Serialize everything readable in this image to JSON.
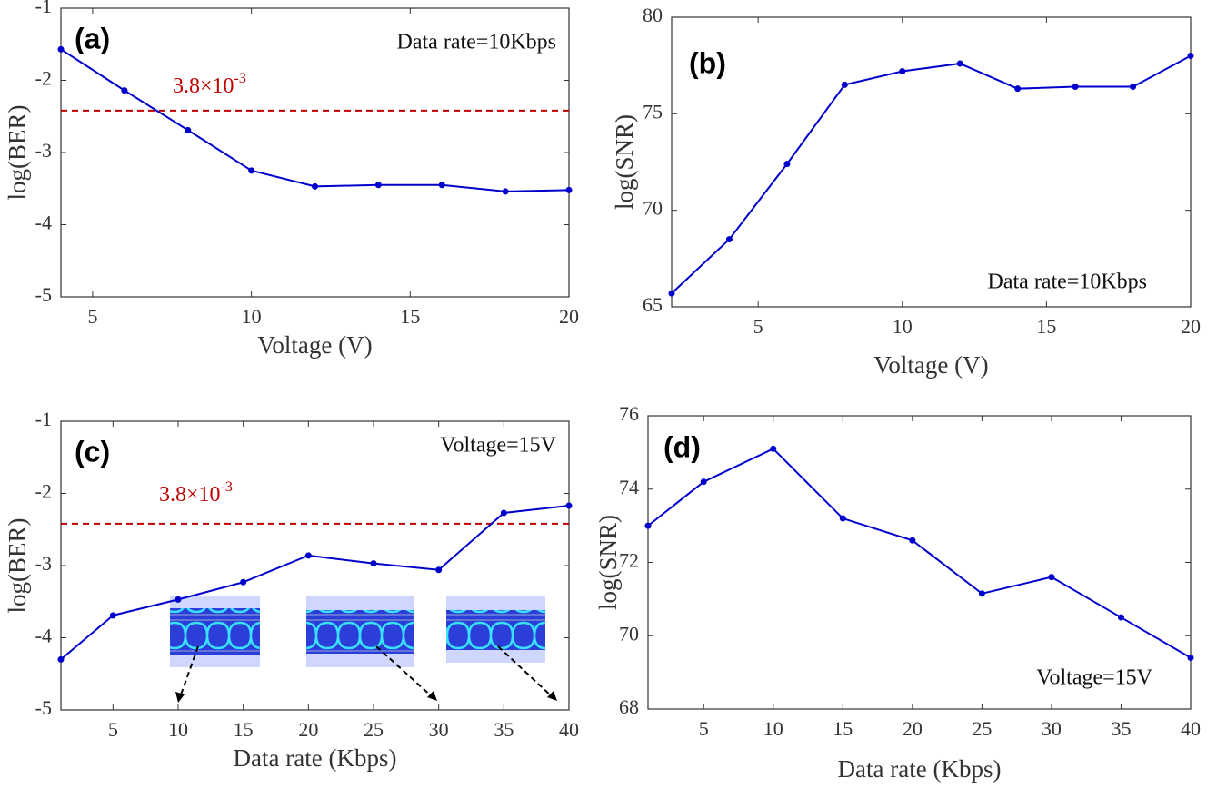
{
  "chart_data": [
    {
      "type": "line",
      "panel_label": "(a)",
      "annotation": "Data rate=10Kbps",
      "xlabel": "Voltage (V)",
      "ylabel": "log(BER)",
      "x": [
        4,
        6,
        8,
        10,
        12,
        14,
        16,
        18,
        20
      ],
      "series": [
        {
          "color": "#0000cc",
          "values": [
            -1.57,
            -2.14,
            -2.69,
            -3.25,
            -3.47,
            -3.45,
            -3.45,
            -3.54,
            -3.52
          ]
        }
      ],
      "threshold": {
        "value": -2.42,
        "color": "#c00000",
        "label_base": "3.8×10",
        "label_exponent": "-3"
      },
      "xlim": [
        4,
        20
      ],
      "xticks": [
        5,
        10,
        15,
        20
      ],
      "ylim": [
        -5,
        -1
      ],
      "yticks": [
        -5,
        -4,
        -3,
        -2,
        -1
      ]
    },
    {
      "type": "line",
      "panel_label": "(b)",
      "annotation": "Data rate=10Kbps",
      "xlabel": "Voltage (V)",
      "ylabel": "log(SNR)",
      "x": [
        2,
        4,
        6,
        8,
        10,
        12,
        14,
        16,
        18,
        20
      ],
      "series": [
        {
          "color": "#0000cc",
          "values": [
            65.7,
            68.5,
            72.4,
            76.5,
            77.2,
            77.6,
            76.3,
            76.4,
            76.4,
            78.0
          ]
        }
      ],
      "xlim": [
        2,
        20
      ],
      "xticks": [
        5,
        10,
        15,
        20
      ],
      "ylim": [
        65,
        80
      ],
      "yticks": [
        65,
        70,
        75,
        80
      ]
    },
    {
      "type": "line",
      "panel_label": "(c)",
      "annotation": "Voltage=15V",
      "xlabel": "Data rate (Kbps)",
      "ylabel": "log(BER)",
      "x": [
        1,
        5,
        10,
        15,
        20,
        25,
        30,
        35,
        40
      ],
      "series": [
        {
          "color": "#0000cc",
          "values": [
            -4.3,
            -3.69,
            -3.47,
            -3.23,
            -2.86,
            -2.97,
            -3.06,
            -2.27,
            -2.17
          ]
        }
      ],
      "threshold": {
        "value": -2.42,
        "color": "#c00000",
        "label_base": "3.8×10",
        "label_exponent": "-3"
      },
      "xlim": [
        1,
        40
      ],
      "xticks": [
        5,
        10,
        15,
        20,
        25,
        30,
        35,
        40
      ],
      "ylim": [
        -5,
        -1
      ],
      "yticks": [
        -5,
        -4,
        -3,
        -2,
        -1
      ]
    },
    {
      "type": "line",
      "panel_label": "(d)",
      "annotation": "Voltage=15V",
      "xlabel": "Data rate (Kbps)",
      "ylabel": "log(SNR)",
      "x": [
        1,
        5,
        10,
        15,
        20,
        25,
        30,
        35,
        40
      ],
      "series": [
        {
          "color": "#0000cc",
          "values": [
            73.0,
            74.2,
            75.1,
            73.2,
            72.6,
            71.15,
            71.6,
            70.5,
            69.4
          ]
        }
      ],
      "xlim": [
        1,
        40
      ],
      "xticks": [
        5,
        10,
        15,
        20,
        25,
        30,
        35,
        40
      ],
      "ylim": [
        68,
        76
      ],
      "yticks": [
        68,
        70,
        72,
        74,
        76
      ]
    }
  ]
}
